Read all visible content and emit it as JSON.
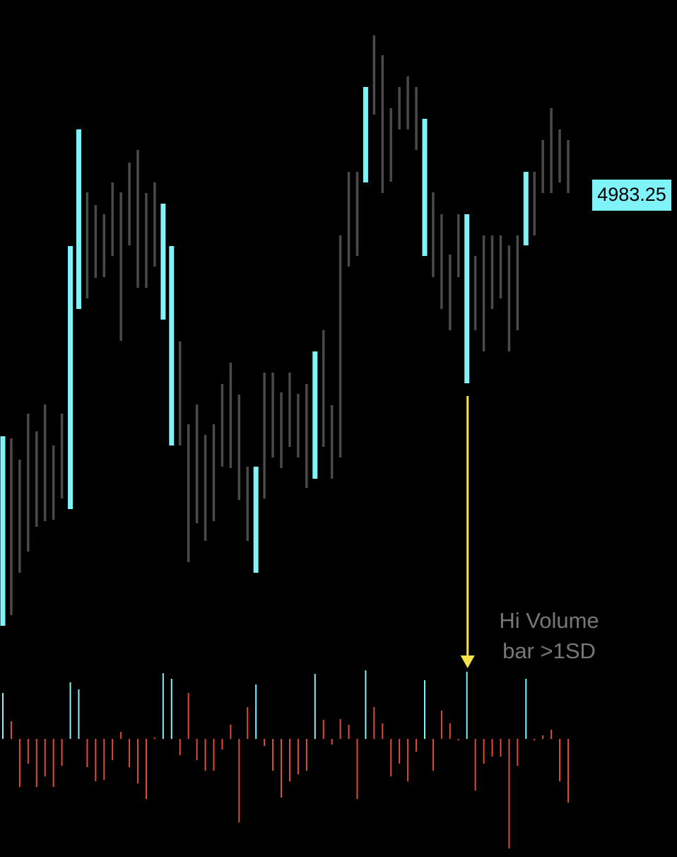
{
  "chart_data": {
    "type": "range-bar",
    "highs": [
      4949.15,
      4948.85,
      4945.85,
      4952.35,
      4949.85,
      4953.65,
      4947.85,
      4952.35,
      4976.05,
      4992.55,
      4983.65,
      4981.85,
      4980.55,
      4985.05,
      4983.65,
      4987.85,
      4989.65,
      4983.55,
      4985.05,
      4982.05,
      4976.05,
      4962.55,
      4950.85,
      4953.65,
      4949.35,
      4950.85,
      4956.55,
      4959.55,
      4955.05,
      4944.85,
      4944.85,
      4958.15,
      4958.15,
      4955.35,
      4958.15,
      4955.15,
      4956.55,
      4961.15,
      4964.15,
      4953.55,
      4977.55,
      4986.55,
      4986.55,
      4998.55,
      5005.85,
      5003.05,
      4995.55,
      4998.55,
      5000.05,
      4998.55,
      4994.05,
      4983.65,
      4980.55,
      4974.85,
      4980.55,
      4980.55,
      4974.65,
      4977.55,
      4977.55,
      4977.55,
      4976.15,
      4977.55,
      4986.55,
      4986.55,
      4991.05,
      4995.55,
      4992.55,
      4991.05
    ],
    "lows": [
      4922.35,
      4923.85,
      4929.85,
      4932.85,
      4936.35,
      4937.15,
      4937.35,
      4940.35,
      4938.85,
      4967.15,
      4968.65,
      4971.55,
      4971.65,
      4974.65,
      4962.65,
      4976.15,
      4970.15,
      4970.15,
      4973.15,
      4965.65,
      4947.85,
      4947.85,
      4931.35,
      4936.85,
      4934.35,
      4937.15,
      4944.85,
      4944.65,
      4940.15,
      4934.35,
      4929.85,
      4940.35,
      4946.15,
      4944.65,
      4947.65,
      4946.15,
      4941.85,
      4943.15,
      4947.65,
      4943.15,
      4946.15,
      4973.15,
      4974.65,
      4985.05,
      4994.65,
      4983.55,
      4985.15,
      4992.55,
      4992.55,
      4989.65,
      4974.65,
      4971.65,
      4967.15,
      4964.15,
      4971.65,
      4956.65,
      4964.15,
      4961.15,
      4967.15,
      4968.65,
      4961.15,
      4964.15,
      4976.15,
      4977.55,
      4983.55,
      4983.55,
      4985.05,
      4983.55
    ],
    "volume_delta": [
      65,
      25,
      -68,
      -35,
      -68,
      -53,
      -68,
      -38,
      80,
      70,
      -40,
      -60,
      -58,
      -30,
      10,
      -40,
      -63,
      -85,
      2,
      93,
      85,
      -23,
      65,
      -30,
      -45,
      -45,
      -15,
      20,
      -118,
      45,
      77,
      -10,
      -45,
      -83,
      -60,
      -50,
      -45,
      92,
      27,
      -8,
      28,
      20,
      -85,
      97,
      45,
      22,
      -53,
      -35,
      -60,
      -18,
      83,
      -45,
      40,
      22,
      -2,
      95,
      -73,
      -35,
      -25,
      -25,
      -155,
      -38,
      85,
      -2,
      5,
      13,
      -60,
      -90
    ],
    "hi_volume": [
      true,
      false,
      false,
      false,
      false,
      false,
      false,
      false,
      true,
      true,
      false,
      false,
      false,
      false,
      false,
      false,
      false,
      false,
      false,
      true,
      true,
      false,
      false,
      false,
      false,
      false,
      false,
      false,
      false,
      false,
      true,
      false,
      false,
      false,
      false,
      false,
      false,
      true,
      false,
      false,
      false,
      false,
      false,
      true,
      false,
      false,
      false,
      false,
      false,
      false,
      true,
      false,
      false,
      false,
      false,
      true,
      false,
      false,
      false,
      false,
      false,
      false,
      true,
      false,
      false,
      false,
      false,
      false
    ],
    "colors": {
      "hi": "#7ff3f7",
      "bar": "#4a4a4a",
      "volume": "#e04a36",
      "annotation": "#f5e34a"
    },
    "ylim": [
      4920.85,
      5010.85
    ],
    "vlim": [
      -160,
      100
    ],
    "last_price": 4983.25,
    "annotation": [
      "Hi Volume",
      "bar >1SD"
    ],
    "annotation_index": 55
  }
}
